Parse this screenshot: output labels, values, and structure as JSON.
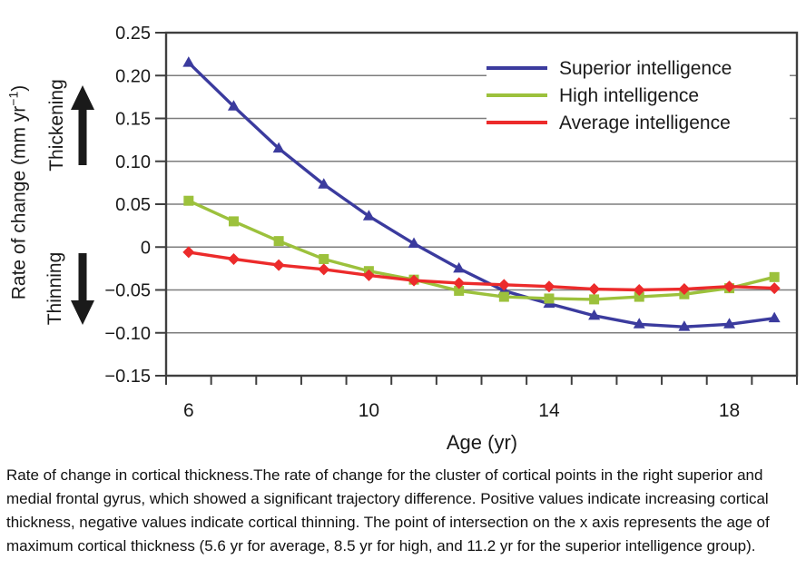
{
  "figure": {
    "y_axis_title": {
      "prefix": "Rate of change (mm yr",
      "sup": "−1",
      "suffix": ")"
    },
    "thickening_label": "Thickening",
    "thinning_label": "Thinning",
    "x_axis_title": "Age (yr)",
    "caption": "Rate of change in cortical thickness.The rate of change for the cluster of cortical points in the right superior and medial frontal gyrus, which showed a significant trajectory difference. Positive values indicate increasing cortical thickness, negative values indicate cortical thinning. The point of intersection on the x axis represents the age of maximum cortical thickness (5.6 yr for average, 8.5 yr for high, and 11.2 yr for the superior intelligence group)."
  },
  "chart_data": {
    "type": "line",
    "x": [
      6,
      7,
      8,
      9,
      10,
      11,
      12,
      13,
      14,
      15,
      16,
      17,
      18,
      19
    ],
    "series": [
      {
        "name": "Superior intelligence",
        "color": "#3B3B9E",
        "marker": "triangle",
        "values": [
          0.215,
          0.164,
          0.115,
          0.073,
          0.036,
          0.004,
          -0.025,
          -0.051,
          -0.066,
          -0.08,
          -0.09,
          -0.093,
          -0.09,
          -0.083
        ]
      },
      {
        "name": "High intelligence",
        "color": "#9CC13C",
        "marker": "square",
        "values": [
          0.054,
          0.03,
          0.007,
          -0.014,
          -0.028,
          -0.038,
          -0.051,
          -0.058,
          -0.06,
          -0.061,
          -0.058,
          -0.055,
          -0.048,
          -0.035
        ]
      },
      {
        "name": "Average intelligence",
        "color": "#EC2B2B",
        "marker": "diamond",
        "values": [
          -0.006,
          -0.014,
          -0.021,
          -0.026,
          -0.033,
          -0.039,
          -0.042,
          -0.044,
          -0.046,
          -0.049,
          -0.05,
          -0.049,
          -0.046,
          -0.048
        ]
      }
    ],
    "xlabel": "Age (yr)",
    "ylabel": "Rate of change (mm yr−1)",
    "xlim": [
      5.5,
      19.5
    ],
    "ylim": [
      -0.15,
      0.25
    ],
    "grid": true,
    "legend_position": "top-right",
    "y_ticks": [
      {
        "v": 0.25,
        "label": "0.25"
      },
      {
        "v": 0.2,
        "label": "0.20"
      },
      {
        "v": 0.15,
        "label": "0.15"
      },
      {
        "v": 0.1,
        "label": "0.10"
      },
      {
        "v": 0.05,
        "label": "0.05"
      },
      {
        "v": 0,
        "label": "0"
      },
      {
        "v": -0.05,
        "label": "−0.05"
      },
      {
        "v": -0.1,
        "label": "−0.10"
      },
      {
        "v": -0.15,
        "label": "−0.15"
      }
    ],
    "x_minor_ticks": [
      5.5,
      6.5,
      7.5,
      8.5,
      9.5,
      10.5,
      11.5,
      12.5,
      13.5,
      14.5,
      15.5,
      16.5,
      17.5,
      18.5,
      19.5
    ],
    "x_tick_labels": [
      {
        "v": 6,
        "label": "6"
      },
      {
        "v": 10,
        "label": "10"
      },
      {
        "v": 14,
        "label": "14"
      },
      {
        "v": 18,
        "label": "18"
      }
    ]
  },
  "style": {
    "grid_color": "#7d7d7d",
    "axis_color": "#3f3f3f",
    "tick_text_color": "#1a1a1a",
    "background": "#ffffff",
    "arrow_color": "#1a1a1a"
  }
}
